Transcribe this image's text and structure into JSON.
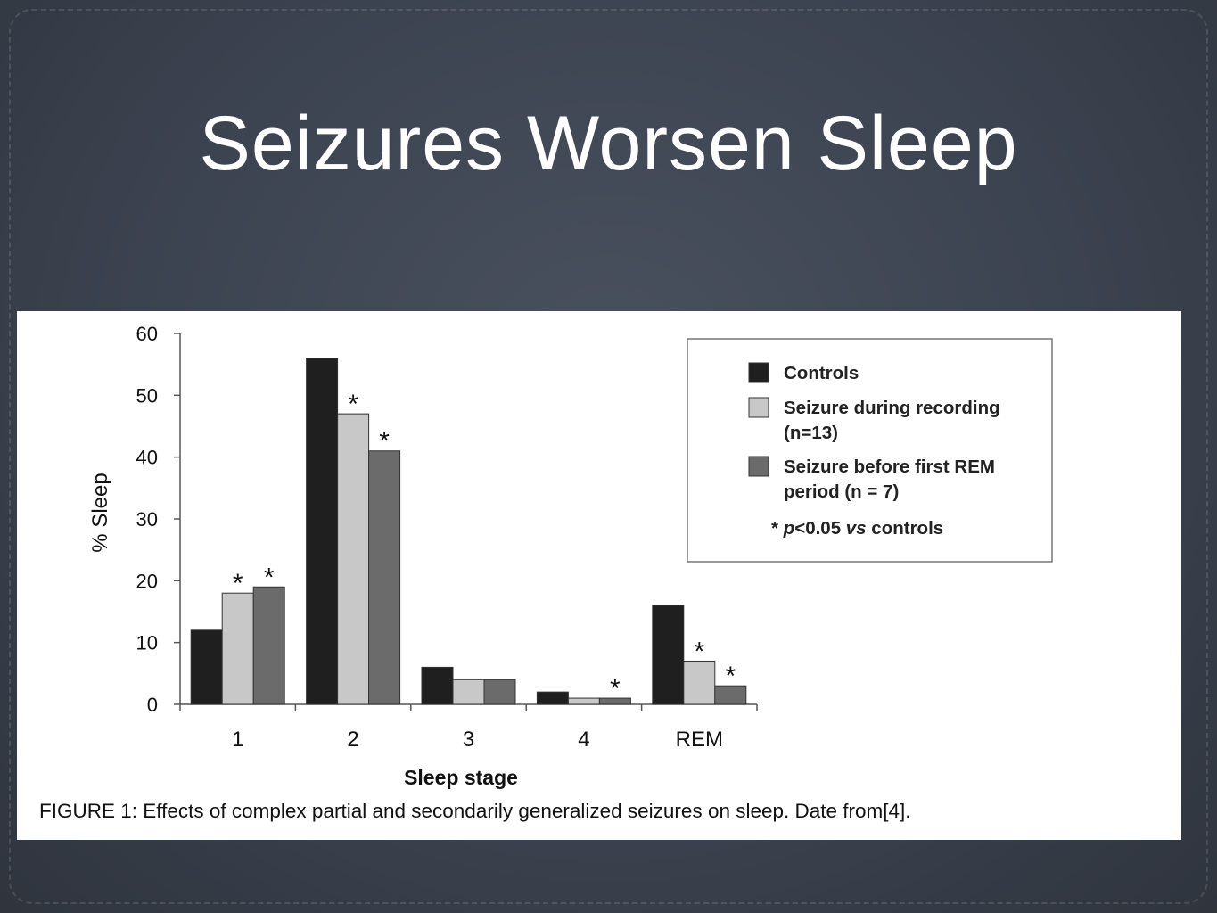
{
  "slide": {
    "title": "Seizures Worsen Sleep",
    "caption": "FIGURE 1: Effects of complex partial and secondarily generalized seizures on sleep.  Date from[4]."
  },
  "colors": {
    "background": "#3c4350",
    "series": [
      "#1f1f1f",
      "#c8c8c8",
      "#6b6b6b"
    ]
  },
  "chart_data": {
    "type": "bar",
    "xlabel": "Sleep stage",
    "ylabel": "% Sleep",
    "ylim": [
      0,
      60
    ],
    "yticks": [
      0,
      10,
      20,
      30,
      40,
      50,
      60
    ],
    "categories": [
      "1",
      "2",
      "3",
      "4",
      "REM"
    ],
    "series": [
      {
        "name": "Controls",
        "values": [
          12,
          56,
          6,
          2,
          16
        ]
      },
      {
        "name": "Seizure during recording (n=13)",
        "values": [
          18,
          47,
          4,
          1,
          7
        ]
      },
      {
        "name": "Seizure before first REM period (n = 7)",
        "values": [
          19,
          41,
          4,
          1,
          3
        ]
      }
    ],
    "significance_marker": "*",
    "significant": [
      [
        false,
        false,
        false,
        false,
        false
      ],
      [
        true,
        true,
        false,
        false,
        true
      ],
      [
        true,
        true,
        false,
        true,
        true
      ]
    ],
    "legend": {
      "position": "top-right",
      "entries": [
        [
          "Controls"
        ],
        [
          "Seizure during recording",
          "(n=13)"
        ],
        [
          "Seizure before first REM",
          "period (n = 7)"
        ]
      ],
      "note_star": "* ",
      "note_p": "p",
      "note_rest": "<0.05 ",
      "note_vs": "vs",
      "note_end": " controls"
    }
  }
}
